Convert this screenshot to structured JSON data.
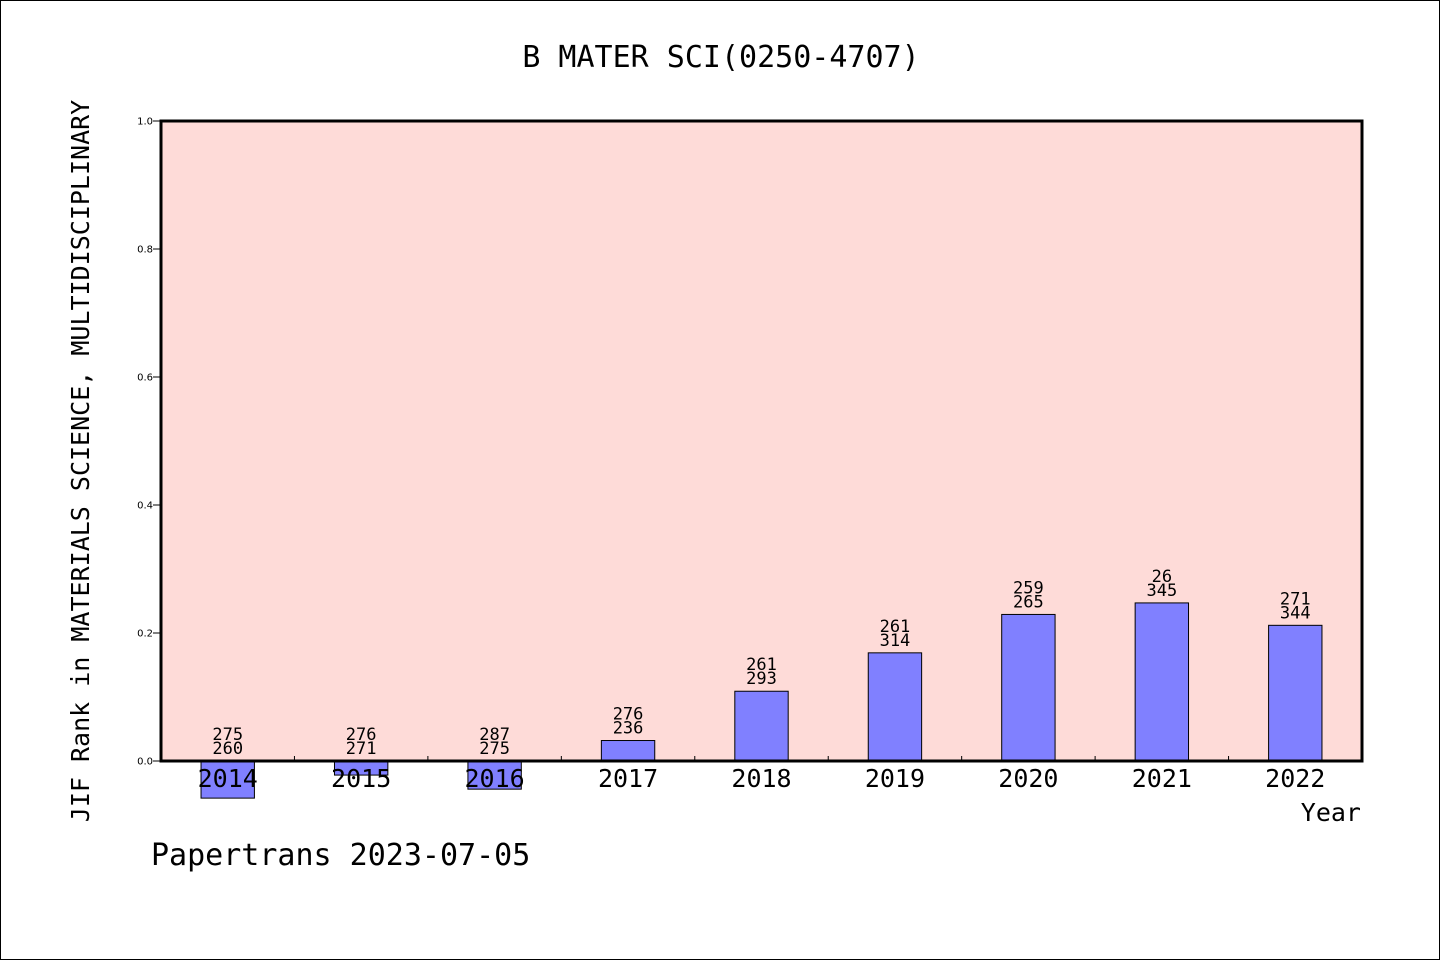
{
  "chart_data": {
    "type": "bar",
    "title": "B MATER SCI(0250-4707)",
    "xlabel": "Year",
    "ylabel": "JIF Rank in MATERIALS SCIENCE, MULTIDISCIPLINARY",
    "ylim": [
      0,
      1.0
    ],
    "yticks": [
      "0.0",
      "0.2",
      "0.4",
      "0.6",
      "0.8",
      "1.0"
    ],
    "grid": false,
    "categories": [
      "2014",
      "2015",
      "2016",
      "2017",
      "2018",
      "2019",
      "2020",
      "2021",
      "2022"
    ],
    "values": [
      -0.058,
      -0.022,
      -0.044,
      0.032,
      0.109,
      0.169,
      0.229,
      0.247,
      0.212
    ],
    "labels_top": [
      "275",
      "276",
      "287",
      "276",
      "261",
      "261",
      "259",
      "26",
      "271"
    ],
    "labels_bottom": [
      "260",
      "271",
      "275",
      "236",
      "293",
      "314",
      "265",
      "345",
      "344"
    ]
  },
  "colors": {
    "plot_background": "#fedbd8",
    "bar_fill": "#8080ff",
    "bar_stroke": "#000000"
  },
  "watermark": "Papertrans 2023-07-05"
}
